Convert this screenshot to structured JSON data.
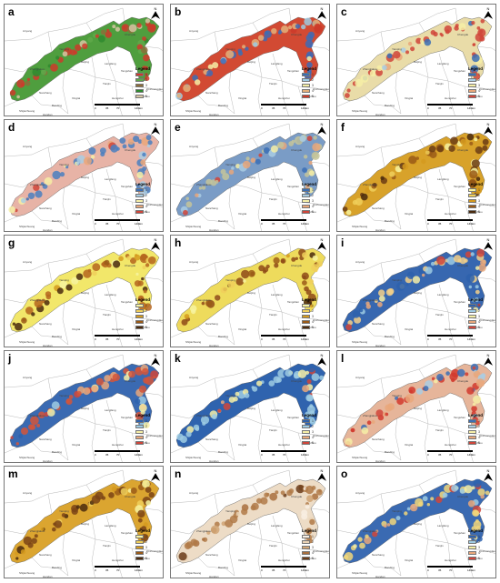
{
  "north_label": "N",
  "legend_title": "Legend",
  "scale_labels": [
    "0",
    "35",
    "70",
    "140km"
  ],
  "region_labels": [
    "Nanchang",
    "Yanqing",
    "Beijing",
    "Tianjin",
    "Baoding",
    "Shijiazhuang",
    "Zhangjiakou",
    "Xingtai",
    "Handan",
    "Hengshui",
    "Cangzhou",
    "Langfang",
    "Chengde",
    "Qinhuangdao",
    "Tangshan",
    "Anyang"
  ],
  "legend_values": [
    "1",
    "2",
    "3",
    "4",
    "5"
  ],
  "panels": [
    {
      "label": "a",
      "palette": [
        "#cf3a2e",
        "#5fa84a",
        "#8c6d3a",
        "#2f8a2f",
        "#d6c6a3"
      ],
      "fill": "#4f9e3e",
      "dot": "#cc3a2a"
    },
    {
      "label": "b",
      "palette": [
        "#3b6fb5",
        "#9ecbe3",
        "#f6efa6",
        "#e4b07a",
        "#cc3a2a"
      ],
      "fill": "#d24a33",
      "dot": "#3f6ab5"
    },
    {
      "label": "c",
      "palette": [
        "#3b6fb5",
        "#a9cde3",
        "#f6efa6",
        "#e9a77a",
        "#d0453a"
      ],
      "fill": "#e9dca8",
      "dot": "#d0453a"
    },
    {
      "label": "d",
      "palette": [
        "#3b6fb5",
        "#a9cde3",
        "#f6efa6",
        "#e9a77a",
        "#d0453a"
      ],
      "fill": "#e7b3a6",
      "dot": "#4a7fbf"
    },
    {
      "label": "e",
      "palette": [
        "#3b6fb5",
        "#a9cde3",
        "#f6efa6",
        "#e9a77a",
        "#d0453a"
      ],
      "fill": "#7a9cc6",
      "dot": "#c4c49a"
    },
    {
      "label": "f",
      "palette": [
        "#f7f3a0",
        "#f0cf5a",
        "#d59a1e",
        "#9a5a17",
        "#4a2a0e"
      ],
      "fill": "#d8a22a",
      "dot": "#6b3c14"
    },
    {
      "label": "g",
      "palette": [
        "#f7f3a0",
        "#f0cf5a",
        "#d59a1e",
        "#9a5a17",
        "#4a2a0e"
      ],
      "fill": "#f2e76a",
      "dot": "#b5651d"
    },
    {
      "label": "h",
      "palette": [
        "#f7f3a0",
        "#f0cf5a",
        "#d59a1e",
        "#9a5a17",
        "#4a2a0e"
      ],
      "fill": "#eedb5c",
      "dot": "#8e4a17"
    },
    {
      "label": "i",
      "palette": [
        "#2e62ad",
        "#9ecbe3",
        "#f6efa6",
        "#e9a77a",
        "#d0453a"
      ],
      "fill": "#3767b0",
      "dot": "#f3d08a"
    },
    {
      "label": "j",
      "palette": [
        "#2e62ad",
        "#9ecbe3",
        "#f6efa6",
        "#e9a77a",
        "#d0453a"
      ],
      "fill": "#3a6ab2",
      "dot": "#d3553a"
    },
    {
      "label": "k",
      "palette": [
        "#2e62ad",
        "#9ecbe3",
        "#f6efa6",
        "#e9a77a",
        "#d0453a"
      ],
      "fill": "#2f63ae",
      "dot": "#9ecbe3"
    },
    {
      "label": "l",
      "palette": [
        "#3b6fb5",
        "#a9cde3",
        "#f6efa6",
        "#e9a77a",
        "#d0453a"
      ],
      "fill": "#e6b59a",
      "dot": "#d13a2e"
    },
    {
      "label": "m",
      "palette": [
        "#f7f3a0",
        "#f0cf5a",
        "#d59a1e",
        "#9a5a17",
        "#4a2a0e"
      ],
      "fill": "#dba530",
      "dot": "#7a4316"
    },
    {
      "label": "n",
      "palette": [
        "#f8efe3",
        "#ead3b6",
        "#d0a474",
        "#a9703e",
        "#6b3c1a"
      ],
      "fill": "#eddcc6",
      "dot": "#b07a48"
    },
    {
      "label": "o",
      "palette": [
        "#2e62ad",
        "#9ecbe3",
        "#f6efa6",
        "#e9a77a",
        "#d0453a"
      ],
      "fill": "#3a6ab2",
      "dot": "#f1d67a"
    }
  ]
}
